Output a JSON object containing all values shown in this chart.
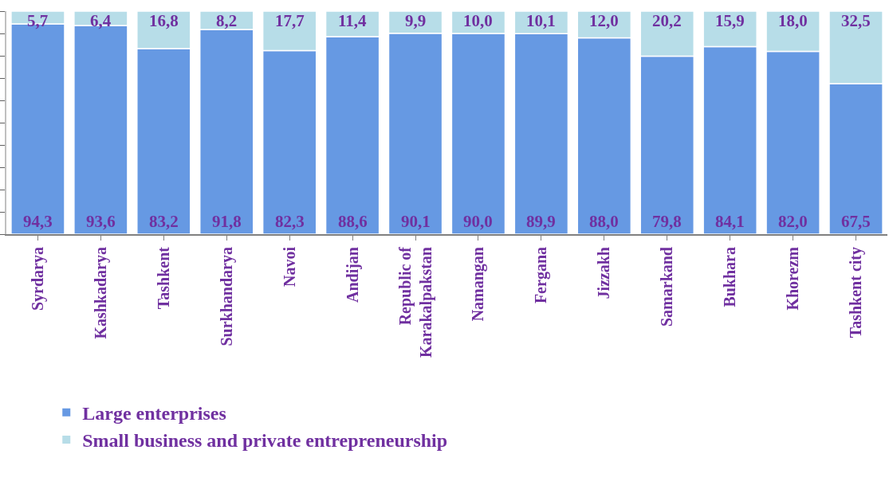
{
  "chart_data": {
    "type": "bar",
    "stacked": true,
    "categories": [
      "Syrdarya",
      "Kashkadarya",
      "Tashkent",
      "Surkhandarya",
      "Navoi",
      "Andijan",
      "Republic of Karakalpakstan",
      "Namangan",
      "Fergana",
      "Jizzakh",
      "Samarkand",
      "Bukhara",
      "Khorezm",
      "Tashkent city"
    ],
    "series": [
      {
        "name": "Large enterprises",
        "color": "#6699e3",
        "values": [
          94.3,
          93.6,
          83.2,
          91.8,
          82.3,
          88.6,
          90.1,
          90.0,
          89.9,
          88.0,
          79.8,
          84.1,
          82.0,
          67.5
        ],
        "value_labels": [
          "94,3",
          "93,6",
          "83,2",
          "91,8",
          "82,3",
          "88,6",
          "90,1",
          "90,0",
          "89,9",
          "88,0",
          "79,8",
          "84,1",
          "82,0",
          "67,5"
        ]
      },
      {
        "name": "Small business and private entrepreneurship",
        "color": "#b7dde8",
        "values": [
          5.7,
          6.4,
          16.8,
          8.2,
          17.7,
          11.4,
          9.9,
          10.0,
          10.1,
          12.0,
          20.2,
          15.9,
          18.0,
          32.5
        ],
        "value_labels": [
          "5,7",
          "6,4",
          "16,8",
          "8,2",
          "17,7",
          "11,4",
          "9,9",
          "10,0",
          "10,1",
          "12,0",
          "20,2",
          "15,9",
          "18,0",
          "32,5"
        ]
      }
    ],
    "ylim": [
      0,
      100
    ],
    "yticks": [
      {
        "value": 0,
        "label": null
      },
      {
        "value": 10,
        "label": null
      },
      {
        "value": 20,
        "label": null
      },
      {
        "value": 30,
        "label": null
      },
      {
        "value": 40,
        "label": null
      },
      {
        "value": 50,
        "label": null
      },
      {
        "value": 60,
        "label": null
      },
      {
        "value": 70,
        "label": null
      },
      {
        "value": 80,
        "label": null
      },
      {
        "value": 90,
        "label": null
      },
      {
        "value": 100,
        "label": null
      }
    ],
    "tick_labels": "x",
    "grid": false,
    "legend": "bottom"
  }
}
